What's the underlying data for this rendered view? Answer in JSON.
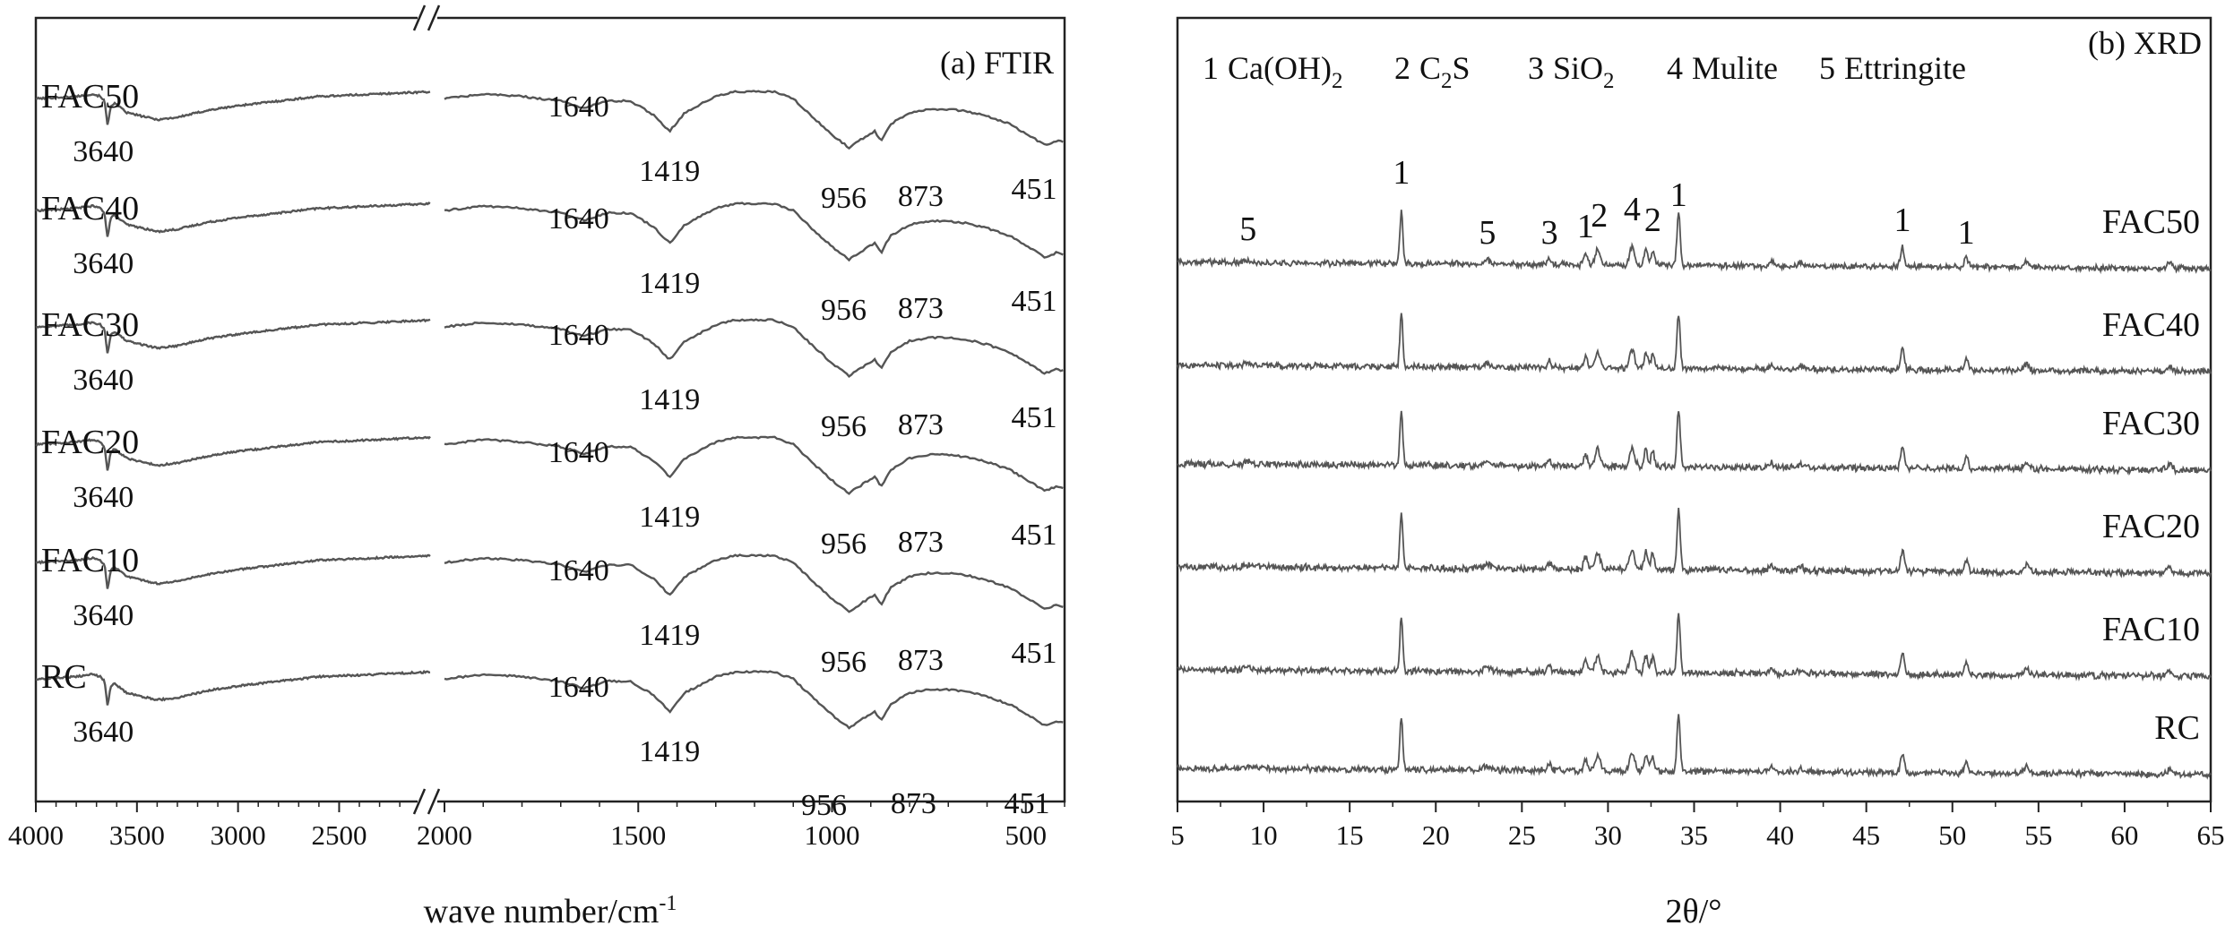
{
  "chart_data": [
    {
      "type": "line",
      "title": "(a) FTIR",
      "xlabel": "wave number/cm-1",
      "xlabel_parts": {
        "base": "wave number/cm",
        "sup": "-1"
      },
      "ylabel": "",
      "x_axis_reversed": true,
      "x_axis_break": [
        2050,
        2000
      ],
      "xlim": [
        4000,
        400
      ],
      "x_ticks": [
        4000,
        3500,
        3000,
        2500,
        2000,
        1500,
        1000,
        500
      ],
      "x_tick_labels": [
        "4000",
        "3500",
        "3000",
        "2500",
        "2000",
        "1500",
        "1000",
        "500"
      ],
      "y_ticks_shown": false,
      "series": [
        {
          "name": "FAC50",
          "offset": 5,
          "peak_labels": [
            "3640",
            "1640",
            "1419",
            "956",
            "873",
            "451"
          ]
        },
        {
          "name": "FAC40",
          "offset": 4,
          "peak_labels": [
            "3640",
            "1640",
            "1419",
            "956",
            "873",
            "451"
          ]
        },
        {
          "name": "FAC30",
          "offset": 3,
          "peak_labels": [
            "3640",
            "1640",
            "1419",
            "956",
            "873",
            "451"
          ]
        },
        {
          "name": "FAC20",
          "offset": 2,
          "peak_labels": [
            "3640",
            "1640",
            "1419",
            "956",
            "873",
            "451"
          ]
        },
        {
          "name": "FAC10",
          "offset": 1,
          "peak_labels": [
            "3640",
            "1640",
            "1419",
            "956",
            "873",
            "451"
          ]
        },
        {
          "name": "RC",
          "offset": 0,
          "peak_labels": [
            "3640",
            "1640",
            "1419",
            "956",
            "873",
            "451"
          ]
        }
      ],
      "shape_points": [
        [
          4000,
          0.86
        ],
        [
          3900,
          0.87
        ],
        [
          3800,
          0.88
        ],
        [
          3720,
          0.9
        ],
        [
          3680,
          0.88
        ],
        [
          3660,
          0.84
        ],
        [
          3645,
          0.62
        ],
        [
          3630,
          0.8
        ],
        [
          3610,
          0.82
        ],
        [
          3550,
          0.74
        ],
        [
          3400,
          0.68
        ],
        [
          3300,
          0.7
        ],
        [
          3150,
          0.76
        ],
        [
          3000,
          0.8
        ],
        [
          2800,
          0.84
        ],
        [
          2600,
          0.88
        ],
        [
          2450,
          0.89
        ],
        [
          2050,
          0.92
        ],
        [
          2000,
          0.86
        ],
        [
          1900,
          0.9
        ],
        [
          1800,
          0.88
        ],
        [
          1700,
          0.84
        ],
        [
          1640,
          0.78
        ],
        [
          1580,
          0.84
        ],
        [
          1520,
          0.84
        ],
        [
          1460,
          0.72
        ],
        [
          1419,
          0.58
        ],
        [
          1380,
          0.74
        ],
        [
          1300,
          0.88
        ],
        [
          1250,
          0.92
        ],
        [
          1150,
          0.92
        ],
        [
          1100,
          0.86
        ],
        [
          1050,
          0.7
        ],
        [
          1000,
          0.55
        ],
        [
          956,
          0.44
        ],
        [
          920,
          0.52
        ],
        [
          890,
          0.58
        ],
        [
          873,
          0.5
        ],
        [
          850,
          0.64
        ],
        [
          800,
          0.74
        ],
        [
          750,
          0.77
        ],
        [
          700,
          0.77
        ],
        [
          650,
          0.75
        ],
        [
          600,
          0.71
        ],
        [
          540,
          0.64
        ],
        [
          500,
          0.56
        ],
        [
          470,
          0.5
        ],
        [
          451,
          0.46
        ],
        [
          420,
          0.5
        ],
        [
          400,
          0.48
        ]
      ]
    },
    {
      "type": "line",
      "title": "(b) XRD",
      "xlabel": "2θ/°",
      "ylabel": "",
      "xlim": [
        5,
        65
      ],
      "x_ticks": [
        5,
        10,
        15,
        20,
        25,
        30,
        35,
        40,
        45,
        50,
        55,
        60,
        65
      ],
      "x_tick_labels": [
        "5",
        "10",
        "15",
        "20",
        "25",
        "30",
        "35",
        "40",
        "45",
        "50",
        "55",
        "60",
        "65"
      ],
      "y_ticks_shown": false,
      "legend": [
        {
          "number": "1",
          "name": "Ca(OH)",
          "sub": "2",
          "tail": ""
        },
        {
          "number": "2",
          "name": "C",
          "sub": "2",
          "tail": "S"
        },
        {
          "number": "3",
          "name": "SiO",
          "sub": "2",
          "tail": ""
        },
        {
          "number": "4",
          "name": "Mulite",
          "sub": "",
          "tail": ""
        },
        {
          "number": "5",
          "name": "Ettringite",
          "sub": "",
          "tail": ""
        }
      ],
      "series": [
        {
          "name": "FAC50",
          "offset": 5
        },
        {
          "name": "FAC40",
          "offset": 4
        },
        {
          "name": "FAC30",
          "offset": 3
        },
        {
          "name": "FAC20",
          "offset": 2
        },
        {
          "name": "FAC10",
          "offset": 1
        },
        {
          "name": "RC",
          "offset": 0
        }
      ],
      "peaks": [
        {
          "x": 9.1,
          "h": 0.05,
          "w": 0.3
        },
        {
          "x": 18.0,
          "h": 1.0,
          "w": 0.12
        },
        {
          "x": 23.0,
          "h": 0.07,
          "w": 0.3
        },
        {
          "x": 26.6,
          "h": 0.12,
          "w": 0.15
        },
        {
          "x": 28.7,
          "h": 0.22,
          "w": 0.15
        },
        {
          "x": 29.4,
          "h": 0.3,
          "w": 0.2
        },
        {
          "x": 31.4,
          "h": 0.35,
          "w": 0.2
        },
        {
          "x": 32.2,
          "h": 0.3,
          "w": 0.15
        },
        {
          "x": 32.6,
          "h": 0.28,
          "w": 0.15
        },
        {
          "x": 34.1,
          "h": 1.05,
          "w": 0.13
        },
        {
          "x": 39.5,
          "h": 0.08,
          "w": 0.2
        },
        {
          "x": 41.2,
          "h": 0.07,
          "w": 0.2
        },
        {
          "x": 47.1,
          "h": 0.38,
          "w": 0.15
        },
        {
          "x": 50.8,
          "h": 0.22,
          "w": 0.15
        },
        {
          "x": 54.3,
          "h": 0.12,
          "w": 0.2
        },
        {
          "x": 62.6,
          "h": 0.1,
          "w": 0.2
        }
      ],
      "peak_markers": [
        {
          "x": 9.1,
          "label": "5"
        },
        {
          "x": 18.0,
          "label": "1"
        },
        {
          "x": 23.0,
          "label": "5"
        },
        {
          "x": 26.6,
          "label": "3"
        },
        {
          "x": 28.7,
          "label": "1"
        },
        {
          "x": 29.5,
          "label": "2"
        },
        {
          "x": 31.4,
          "label": "4"
        },
        {
          "x": 32.6,
          "label": "2"
        },
        {
          "x": 34.1,
          "label": "1"
        },
        {
          "x": 47.1,
          "label": "1"
        },
        {
          "x": 50.8,
          "label": "1"
        }
      ]
    }
  ]
}
